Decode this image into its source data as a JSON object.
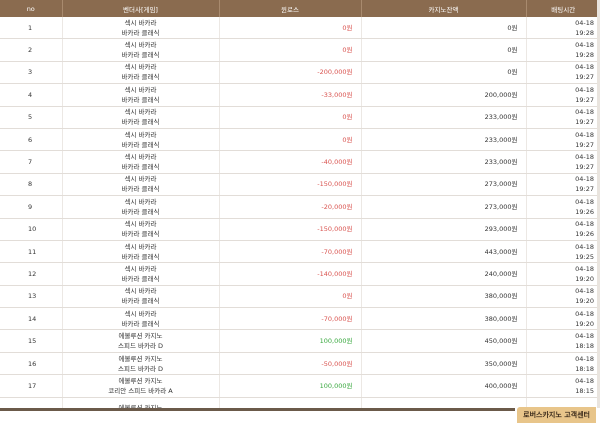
{
  "header": {
    "no": "no",
    "vendor": "벤더사[게임]",
    "winloss": "윈로스",
    "balance": "카지노잔액",
    "time": "배팅시간"
  },
  "rows": [
    {
      "no": "1",
      "vendor1": "섹시 바카라",
      "vendor2": "바카라 클래식",
      "winloss": "0원",
      "wl_type": "zero",
      "balance": "0원",
      "date": "04-18",
      "time": "19:28"
    },
    {
      "no": "2",
      "vendor1": "섹시 바카라",
      "vendor2": "바카라 클래식",
      "winloss": "0원",
      "wl_type": "zero",
      "balance": "0원",
      "date": "04-18",
      "time": "19:28"
    },
    {
      "no": "3",
      "vendor1": "섹시 바카라",
      "vendor2": "바카라 클래식",
      "winloss": "-200,000원",
      "wl_type": "neg",
      "balance": "0원",
      "date": "04-18",
      "time": "19:27"
    },
    {
      "no": "4",
      "vendor1": "섹시 바카라",
      "vendor2": "바카라 클래식",
      "winloss": "-33,000원",
      "wl_type": "neg",
      "balance": "200,000원",
      "date": "04-18",
      "time": "19:27"
    },
    {
      "no": "5",
      "vendor1": "섹시 바카라",
      "vendor2": "바카라 클래식",
      "winloss": "0원",
      "wl_type": "zero",
      "balance": "233,000원",
      "date": "04-18",
      "time": "19:27"
    },
    {
      "no": "6",
      "vendor1": "섹시 바카라",
      "vendor2": "바카라 클래식",
      "winloss": "0원",
      "wl_type": "zero",
      "balance": "233,000원",
      "date": "04-18",
      "time": "19:27"
    },
    {
      "no": "7",
      "vendor1": "섹시 바카라",
      "vendor2": "바카라 클래식",
      "winloss": "-40,000원",
      "wl_type": "neg",
      "balance": "233,000원",
      "date": "04-18",
      "time": "19:27"
    },
    {
      "no": "8",
      "vendor1": "섹시 바카라",
      "vendor2": "바카라 클래식",
      "winloss": "-150,000원",
      "wl_type": "neg",
      "balance": "273,000원",
      "date": "04-18",
      "time": "19:27"
    },
    {
      "no": "9",
      "vendor1": "섹시 바카라",
      "vendor2": "바카라 클래식",
      "winloss": "-20,000원",
      "wl_type": "neg",
      "balance": "273,000원",
      "date": "04-18",
      "time": "19:26"
    },
    {
      "no": "10",
      "vendor1": "섹시 바카라",
      "vendor2": "바카라 클래식",
      "winloss": "-150,000원",
      "wl_type": "neg",
      "balance": "293,000원",
      "date": "04-18",
      "time": "19:26"
    },
    {
      "no": "11",
      "vendor1": "섹시 바카라",
      "vendor2": "바카라 클래식",
      "winloss": "-70,000원",
      "wl_type": "neg",
      "balance": "443,000원",
      "date": "04-18",
      "time": "19:25"
    },
    {
      "no": "12",
      "vendor1": "섹시 바카라",
      "vendor2": "바카라 클래식",
      "winloss": "-140,000원",
      "wl_type": "neg",
      "balance": "240,000원",
      "date": "04-18",
      "time": "19:20"
    },
    {
      "no": "13",
      "vendor1": "섹시 바카라",
      "vendor2": "바카라 클래식",
      "winloss": "0원",
      "wl_type": "zero",
      "balance": "380,000원",
      "date": "04-18",
      "time": "19:20"
    },
    {
      "no": "14",
      "vendor1": "섹시 바카라",
      "vendor2": "바카라 클래식",
      "winloss": "-70,000원",
      "wl_type": "neg",
      "balance": "380,000원",
      "date": "04-18",
      "time": "19:20"
    },
    {
      "no": "15",
      "vendor1": "에볼루션 카지노",
      "vendor2": "스피드 바카라 D",
      "winloss": "100,000원",
      "wl_type": "pos",
      "balance": "450,000원",
      "date": "04-18",
      "time": "18:18"
    },
    {
      "no": "16",
      "vendor1": "에볼루션 카지노",
      "vendor2": "스피드 바카라 D",
      "winloss": "-50,000원",
      "wl_type": "neg",
      "balance": "350,000원",
      "date": "04-18",
      "time": "18:18"
    },
    {
      "no": "17",
      "vendor1": "에볼루션 카지노",
      "vendor2": "코리안 스피드 바카라 A",
      "winloss": "100,000원",
      "wl_type": "pos",
      "balance": "400,000원",
      "date": "04-18",
      "time": "18:15"
    },
    {
      "no": "",
      "vendor1": "에볼루션 카지노",
      "vendor2": "",
      "winloss": "",
      "wl_type": "zero",
      "balance": "",
      "date": "",
      "time": ""
    }
  ],
  "footer": {
    "cs_label": "로버스카지노 고객센터"
  },
  "colors": {
    "header_bg": "#8a6b4f",
    "loss": "#d9534f",
    "win": "#39a83f",
    "cs_badge": "#e8c58a"
  }
}
